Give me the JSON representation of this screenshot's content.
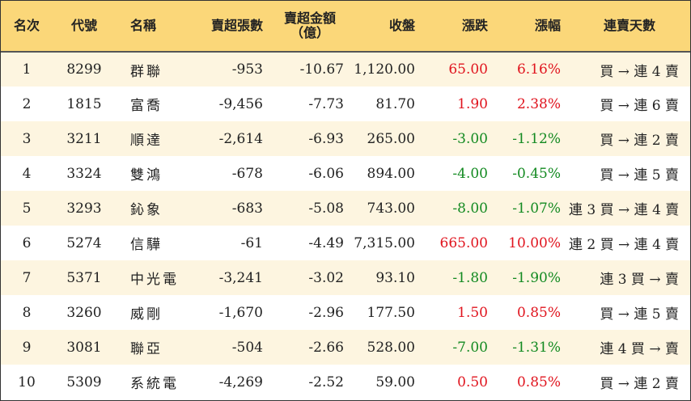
{
  "headers": {
    "rank": "名次",
    "code": "代號",
    "name": "名稱",
    "net_sell_lots": "賣超張數",
    "net_sell_amount_line1": "賣超金額",
    "net_sell_amount_line2": "（億）",
    "close": "收盤",
    "change": "漲跌",
    "change_pct": "漲幅",
    "streak": "連賣天數"
  },
  "colors": {
    "header_bg": "#fbd779",
    "stripe_bg": "#fdf5e0",
    "up": "#e0141e",
    "down": "#138a21"
  },
  "rows": [
    {
      "rank": "1",
      "code": "8299",
      "name": "群聯",
      "lots": "-953",
      "amount": "-10.67",
      "close": "1,120.00",
      "change": "65.00",
      "pct": "6.16%",
      "dir": "up",
      "streak": "買 → 連 4 賣"
    },
    {
      "rank": "2",
      "code": "1815",
      "name": "富喬",
      "lots": "-9,456",
      "amount": "-7.73",
      "close": "81.70",
      "change": "1.90",
      "pct": "2.38%",
      "dir": "up",
      "streak": "買 → 連 6 賣"
    },
    {
      "rank": "3",
      "code": "3211",
      "name": "順達",
      "lots": "-2,614",
      "amount": "-6.93",
      "close": "265.00",
      "change": "-3.00",
      "pct": "-1.12%",
      "dir": "down",
      "streak": "買 → 連 2 賣"
    },
    {
      "rank": "4",
      "code": "3324",
      "name": "雙鴻",
      "lots": "-678",
      "amount": "-6.06",
      "close": "894.00",
      "change": "-4.00",
      "pct": "-0.45%",
      "dir": "down",
      "streak": "買 → 連 5 賣"
    },
    {
      "rank": "5",
      "code": "3293",
      "name": "鈊象",
      "lots": "-683",
      "amount": "-5.08",
      "close": "743.00",
      "change": "-8.00",
      "pct": "-1.07%",
      "dir": "down",
      "streak": "連 3 買 → 連 4 賣"
    },
    {
      "rank": "6",
      "code": "5274",
      "name": "信驊",
      "lots": "-61",
      "amount": "-4.49",
      "close": "7,315.00",
      "change": "665.00",
      "pct": "10.00%",
      "dir": "up",
      "streak": "連 2 買 → 連 4 賣"
    },
    {
      "rank": "7",
      "code": "5371",
      "name": "中光電",
      "lots": "-3,241",
      "amount": "-3.02",
      "close": "93.10",
      "change": "-1.80",
      "pct": "-1.90%",
      "dir": "down",
      "streak": "連 3 買 → 賣"
    },
    {
      "rank": "8",
      "code": "3260",
      "name": "威剛",
      "lots": "-1,670",
      "amount": "-2.96",
      "close": "177.50",
      "change": "1.50",
      "pct": "0.85%",
      "dir": "up",
      "streak": "買 → 連 5 賣"
    },
    {
      "rank": "9",
      "code": "3081",
      "name": "聯亞",
      "lots": "-504",
      "amount": "-2.66",
      "close": "528.00",
      "change": "-7.00",
      "pct": "-1.31%",
      "dir": "down",
      "streak": "連 4 買 → 賣"
    },
    {
      "rank": "10",
      "code": "5309",
      "name": "系統電",
      "lots": "-4,269",
      "amount": "-2.52",
      "close": "59.00",
      "change": "0.50",
      "pct": "0.85%",
      "dir": "up",
      "streak": "買 → 連 2 賣"
    }
  ]
}
